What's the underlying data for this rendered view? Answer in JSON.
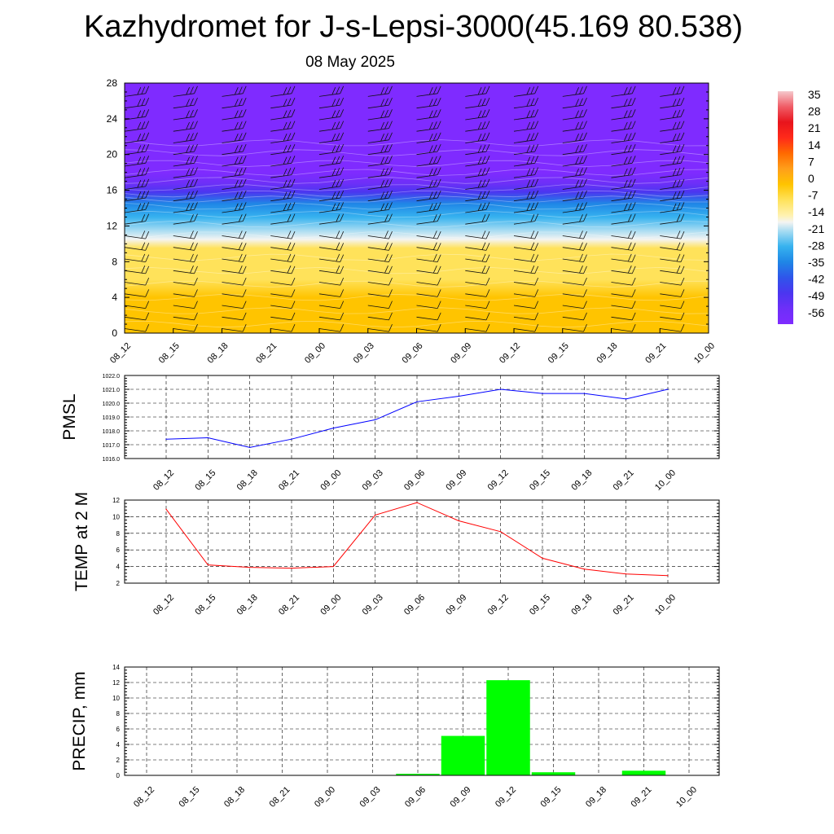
{
  "page": {
    "title": "Kazhydromet for J-s-Lepsi-3000(45.169 80.538)",
    "subtitle": "08 May 2025"
  },
  "chart_data": [
    {
      "type": "heatmap",
      "title": "",
      "xlabel": "",
      "ylabel": "",
      "x_ticks": [
        "08_12",
        "08_15",
        "08_18",
        "08_21",
        "09_00",
        "09_03",
        "09_06",
        "09_09",
        "09_12",
        "09_15",
        "09_18",
        "09_21",
        "10_00"
      ],
      "y_ticks": [
        0,
        4,
        8,
        12,
        16,
        20,
        24,
        28
      ],
      "ylim": [
        0,
        28
      ],
      "colorbar_ticks": [
        35,
        28,
        21,
        14,
        7,
        0,
        -7,
        -14,
        -21,
        -28,
        -35,
        -42,
        -49,
        -56
      ],
      "colorbar_range": [
        -63,
        42
      ],
      "temperature_profile": {
        "height": [
          0,
          2,
          4,
          6,
          8,
          9.5,
          10.5,
          11.5,
          13,
          14.5,
          15.8,
          16.8,
          18,
          20,
          22,
          24,
          28
        ],
        "value": [
          6,
          4,
          1,
          -1,
          -4,
          -6,
          -14,
          -19,
          -25,
          -33,
          -42,
          -52,
          -58,
          -60,
          -60,
          -61,
          -62
        ]
      },
      "wind_barbs": "per time step and height level"
    },
    {
      "type": "line",
      "ylabel": "PMSL",
      "categories": [
        "08_12",
        "08_15",
        "08_18",
        "08_21",
        "09_00",
        "09_03",
        "09_06",
        "09_09",
        "09_12",
        "09_15",
        "09_18",
        "09_21",
        "10_00"
      ],
      "ylim": [
        1016.0,
        1022.0
      ],
      "y_ticks": [
        "1016.0",
        "1017.0",
        "1018.0",
        "1019.0",
        "1020.0",
        "1021.0",
        "1022.0"
      ],
      "color": "#0000ff",
      "values": [
        1017.4,
        1017.5,
        1016.8,
        1017.4,
        1018.2,
        1018.8,
        1020.1,
        1020.5,
        1021.0,
        1020.7,
        1020.7,
        1020.3,
        1021.0
      ]
    },
    {
      "type": "line",
      "ylabel": "TEMP at 2 M",
      "categories": [
        "08_12",
        "08_15",
        "08_18",
        "08_21",
        "09_00",
        "09_03",
        "09_06",
        "09_09",
        "09_12",
        "09_15",
        "09_18",
        "09_21",
        "10_00"
      ],
      "ylim": [
        2,
        12
      ],
      "y_ticks": [
        "2",
        "4",
        "6",
        "8",
        "10",
        "12"
      ],
      "color": "#ff0000",
      "values": [
        10.9,
        4.2,
        3.9,
        3.8,
        4.0,
        10.2,
        11.7,
        9.5,
        8.2,
        5.0,
        3.7,
        3.1,
        2.9
      ]
    },
    {
      "type": "bar",
      "ylabel": "PRECIP, mm",
      "categories": [
        "08_12",
        "08_15",
        "08_18",
        "08_21",
        "09_00",
        "09_03",
        "09_06",
        "09_09",
        "09_12",
        "09_15",
        "09_18",
        "09_21",
        "10_00"
      ],
      "ylim": [
        0,
        14
      ],
      "y_ticks": [
        "0",
        "2",
        "4",
        "6",
        "8",
        "10",
        "12",
        "14"
      ],
      "color": "#00ff00",
      "values": [
        0,
        0,
        0,
        0,
        0,
        0,
        0.2,
        5.1,
        12.3,
        0.4,
        0,
        0.6,
        0
      ]
    }
  ]
}
